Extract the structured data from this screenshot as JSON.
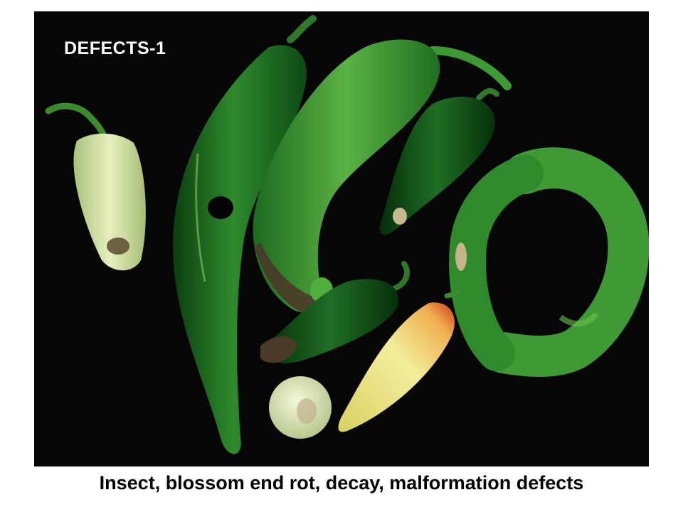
{
  "slide": {
    "photo_label": "DEFECTS-1",
    "caption": "Insect, blossom end rot, decay, malformation defects"
  },
  "colors": {
    "background": "#060606",
    "dark_green": "#0f5a18",
    "mid_green": "#2e8a2a",
    "light_green": "#4fae3c",
    "pale_green": "#d8e8a8",
    "yellow": "#e8e070",
    "red_tip": "#d04020",
    "rot_brown": "#4a3a28"
  }
}
